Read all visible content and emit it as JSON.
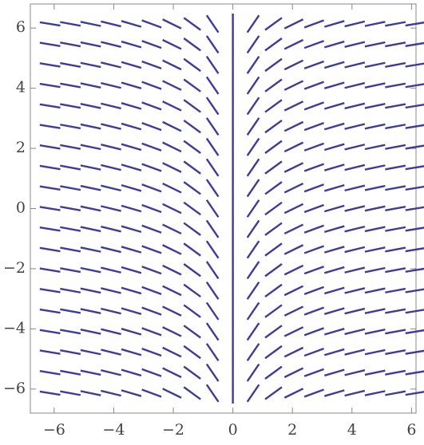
{
  "chart_data": {
    "type": "slope_field",
    "color": "#3e3c98",
    "columns": [
      -6.138,
      -5.456,
      -4.774,
      -4.092,
      -3.41,
      -2.728,
      -2.046,
      -1.364,
      -0.682,
      0,
      0.682,
      1.364,
      2.046,
      2.728,
      3.41,
      4.092,
      4.774,
      5.456,
      6.138
    ],
    "angles": [
      -9.25,
      -10.39,
      -11.83,
      -13.73,
      -16.35,
      -20.14,
      -26.05,
      -36.2,
      -55.7,
      90,
      55.7,
      36.2,
      26.05,
      20.14,
      16.35,
      13.73,
      11.83,
      10.39,
      9.25
    ],
    "rows": [
      -6.138,
      -5.456,
      -4.774,
      -4.092,
      -3.41,
      -2.728,
      -2.046,
      -1.364,
      -0.682,
      0,
      0.682,
      1.364,
      2.046,
      2.728,
      3.41,
      4.092,
      4.774,
      5.456,
      6.138
    ],
    "xlim": [
      -6.8,
      6.15
    ],
    "ylim": [
      -6.8,
      6.8
    ],
    "xticks": [
      {
        "value": -6,
        "label": "−6"
      },
      {
        "value": -4,
        "label": "−4"
      },
      {
        "value": -2,
        "label": "−2"
      },
      0,
      2,
      4,
      6
    ],
    "yticks": [
      {
        "value": -6,
        "label": "−6"
      },
      {
        "value": -4,
        "label": "−4"
      },
      {
        "value": -2,
        "label": "−2"
      },
      0,
      2,
      4,
      6
    ]
  }
}
